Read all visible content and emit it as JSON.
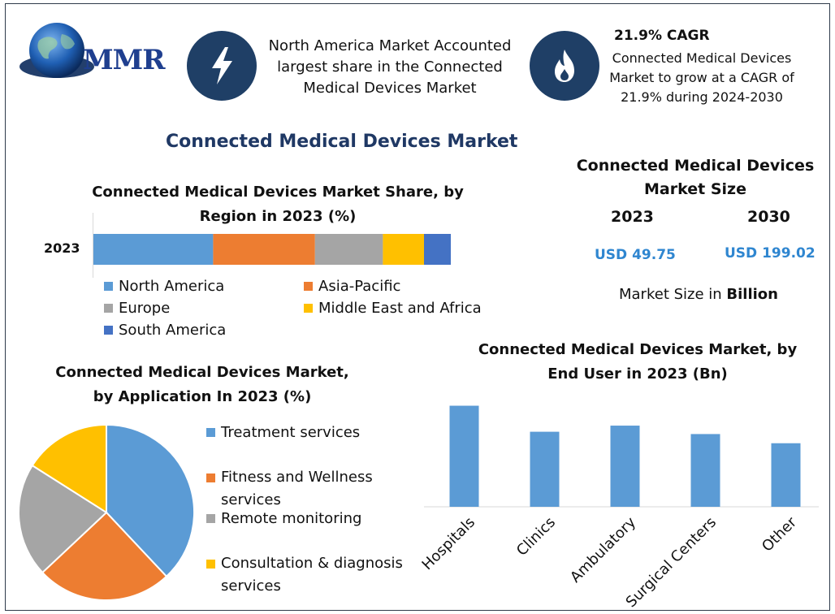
{
  "colors": {
    "dark_navy": "#1f3f66",
    "blue": "#5b9bd5",
    "orange": "#ed7d31",
    "gray": "#a5a5a5",
    "yellow": "#ffc000",
    "dark_blue": "#4472c4",
    "value_blue": "#2f86d0",
    "title_navy": "#1f3864"
  },
  "logo": {
    "text": "MMR",
    "icon": "globe-icon"
  },
  "header": {
    "left_icon": "lightning-bolt-icon",
    "left_text": "North America Market Accounted largest share in the Connected Medical Devices Market",
    "right_icon": "flame-icon",
    "cagr_title": "21.9% CAGR",
    "cagr_text": "Connected Medical Devices Market to grow at a CAGR of 21.9% during 2024-2030"
  },
  "main_title": "Connected Medical Devices Market",
  "market_size": {
    "title": "Connected Medical Devices Market Size",
    "year1": "2023",
    "year2": "2030",
    "value1": "USD 49.75",
    "value2": "USD 199.02",
    "unit_prefix": "Market Size in ",
    "unit_bold": "Billion"
  },
  "chart_data": [
    {
      "type": "bar",
      "orientation": "horizontal-stacked",
      "title": "Connected Medical Devices Market Share, by Region in 2023 (%)",
      "categories": [
        "2023"
      ],
      "series": [
        {
          "name": "North America",
          "values": [
            33.5
          ],
          "color": "#5b9bd5"
        },
        {
          "name": "Asia-Pacific",
          "values": [
            28.5
          ],
          "color": "#ed7d31"
        },
        {
          "name": "Europe",
          "values": [
            19
          ],
          "color": "#a5a5a5"
        },
        {
          "name": "Middle East and Africa",
          "values": [
            11.5
          ],
          "color": "#ffc000"
        },
        {
          "name": "South America",
          "values": [
            7.5
          ],
          "color": "#4472c4"
        }
      ],
      "legend": "bottom"
    },
    {
      "type": "pie",
      "title": "Connected Medical Devices Market, by Application In 2023 (%)",
      "slices": [
        {
          "name": "Treatment services",
          "value": 38,
          "color": "#5b9bd5"
        },
        {
          "name": "Fitness and Wellness services",
          "value": 25,
          "color": "#ed7d31"
        },
        {
          "name": "Remote monitoring",
          "value": 21,
          "color": "#a5a5a5"
        },
        {
          "name": "Consultation & diagnosis services",
          "value": 16,
          "color": "#ffc000"
        }
      ],
      "legend": "right"
    },
    {
      "type": "bar",
      "title": "Connected Medical Devices Market, by End User in 2023 (Bn)",
      "categories": [
        "Hospitals",
        "Clinics",
        "Ambulatory",
        "Surgical Centers",
        "Other"
      ],
      "values": [
        13.2,
        9.8,
        10.6,
        9.5,
        8.3
      ],
      "ylim": [
        0,
        14
      ],
      "color": "#5b9bd5",
      "grid": false
    }
  ]
}
